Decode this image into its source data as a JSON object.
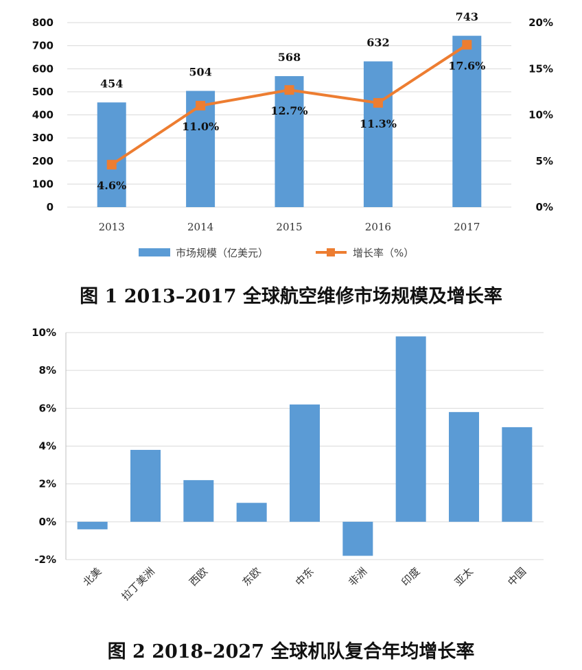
{
  "chart_data": [
    {
      "type": "bar",
      "title": "",
      "categories": [
        "2013",
        "2014",
        "2015",
        "2016",
        "2017"
      ],
      "ylim": [
        0,
        800
      ],
      "y_ticks": [
        "0",
        "100",
        "200",
        "300",
        "400",
        "500",
        "600",
        "700",
        "800"
      ],
      "y2lim": [
        0,
        20
      ],
      "y2_ticks": [
        "0%",
        "5%",
        "10%",
        "15%",
        "20%"
      ],
      "series": [
        {
          "name": "市场规模（亿美元）",
          "type": "bar",
          "axis": "left",
          "values": [
            454,
            504,
            568,
            632,
            743
          ],
          "labels": [
            "454",
            "504",
            "568",
            "632",
            "743"
          ],
          "color": "#5B9BD5"
        },
        {
          "name": "增长率（%）",
          "type": "line",
          "axis": "right",
          "values": [
            4.6,
            11.0,
            12.7,
            11.3,
            17.6
          ],
          "labels": [
            "4.6%",
            "11.0%",
            "12.7%",
            "11.3%",
            "17.6%"
          ],
          "color": "#ED7D31"
        }
      ],
      "legend_position": "bottom",
      "grid": true
    },
    {
      "type": "bar",
      "title": "",
      "categories": [
        "北美",
        "拉丁美洲",
        "西欧",
        "东欧",
        "中东",
        "非洲",
        "印度",
        "亚太",
        "中国"
      ],
      "values": [
        -0.4,
        3.8,
        2.2,
        1.0,
        6.2,
        -1.8,
        9.8,
        5.8,
        5.0
      ],
      "ylim": [
        -2,
        10
      ],
      "y_ticks": [
        "-2%",
        "0%",
        "2%",
        "4%",
        "6%",
        "8%",
        "10%"
      ],
      "color": "#5B9BD5",
      "grid": true
    }
  ],
  "captions": {
    "fig1": "图 1   2013–2017 全球航空维修市场规模及增长率",
    "fig2": "图 2   2018–2027 全球机队复合年均增长率"
  }
}
